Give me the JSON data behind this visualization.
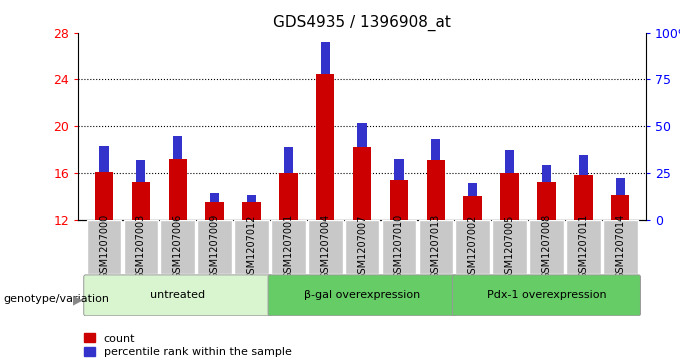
{
  "title": "GDS4935 / 1396908_at",
  "samples": [
    "GSM1207000",
    "GSM1207003",
    "GSM1207006",
    "GSM1207009",
    "GSM1207012",
    "GSM1207001",
    "GSM1207004",
    "GSM1207007",
    "GSM1207010",
    "GSM1207013",
    "GSM1207002",
    "GSM1207005",
    "GSM1207008",
    "GSM1207011",
    "GSM1207014"
  ],
  "count_values": [
    16.1,
    15.2,
    17.2,
    13.5,
    13.5,
    16.0,
    24.5,
    18.2,
    15.4,
    17.1,
    14.0,
    16.0,
    15.2,
    15.8,
    14.1
  ],
  "percentile_values": [
    14,
    12,
    12,
    5,
    4,
    14,
    17,
    13,
    11,
    11,
    7,
    12,
    9,
    11,
    9
  ],
  "y_min": 12,
  "y_max": 28,
  "y_ticks": [
    12,
    16,
    20,
    24,
    28
  ],
  "y2_ticks": [
    0,
    25,
    50,
    75,
    100
  ],
  "y2_labels": [
    "0",
    "25",
    "50",
    "75",
    "100%"
  ],
  "bar_color": "#cc0000",
  "blue_color": "#3333cc",
  "groups": [
    {
      "label": "untreated",
      "start": 0,
      "end": 5,
      "color": "#d8f5d0"
    },
    {
      "label": "β-gal overexpression",
      "start": 5,
      "end": 10,
      "color": "#66cc66"
    },
    {
      "label": "Pdx-1 overexpression",
      "start": 10,
      "end": 15,
      "color": "#66cc66"
    }
  ],
  "xlabel_left": "genotype/variation",
  "legend_count": "count",
  "legend_percentile": "percentile rank within the sample",
  "bar_width": 0.5,
  "tick_bg_color": "#c8c8c8",
  "plot_bg_color": "#ffffff",
  "title_fontsize": 11
}
